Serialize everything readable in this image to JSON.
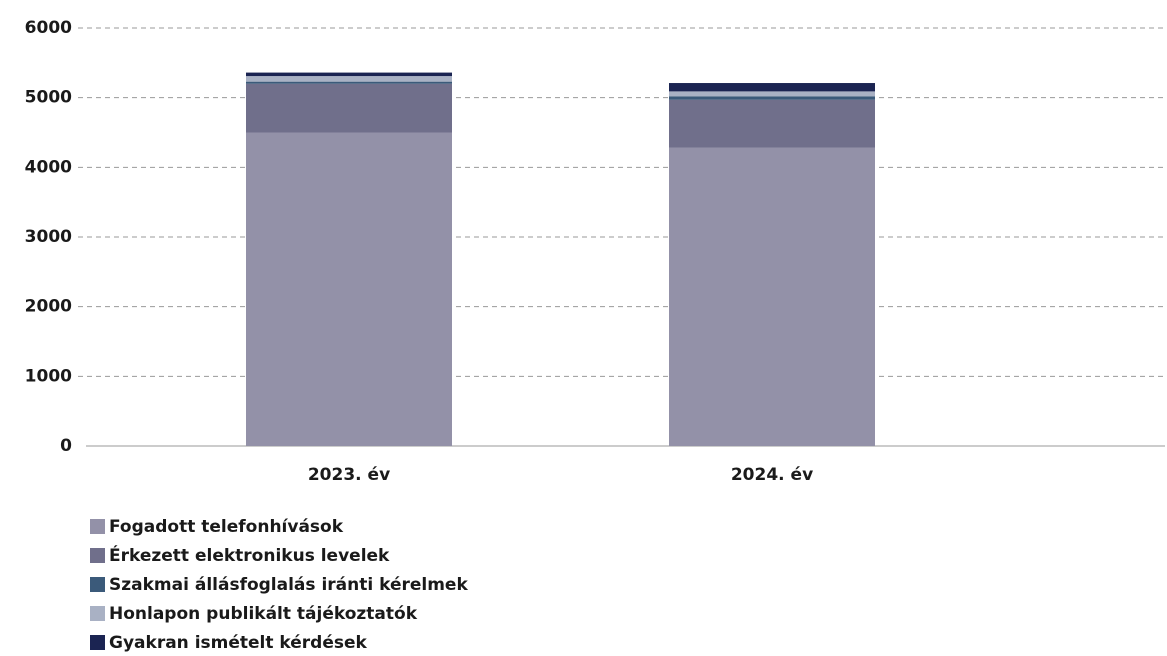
{
  "chart_data": {
    "type": "stacked_bar",
    "categories": [
      "2023. év",
      "2024. év"
    ],
    "series": [
      {
        "name": "Fogadott telefonhívások",
        "color": "#9391a8",
        "values": [
          4500,
          4280
        ]
      },
      {
        "name": "Érkezett elektronikus levelek",
        "color": "#706f8b",
        "values": [
          700,
          690
        ]
      },
      {
        "name": "Szakmai állásfoglalás iránti kérelmek",
        "color": "#3b5a7a",
        "values": [
          30,
          50
        ]
      },
      {
        "name": "Honlapon publikált tájékoztatók",
        "color": "#a9b1c4",
        "values": [
          80,
          70
        ]
      },
      {
        "name": "Gyakran ismételt kérdések",
        "color": "#1b2452",
        "values": [
          50,
          120
        ]
      }
    ],
    "ylim": [
      0,
      6000
    ],
    "yticks": [
      0,
      1000,
      2000,
      3000,
      4000,
      5000,
      6000
    ],
    "grid": true
  }
}
